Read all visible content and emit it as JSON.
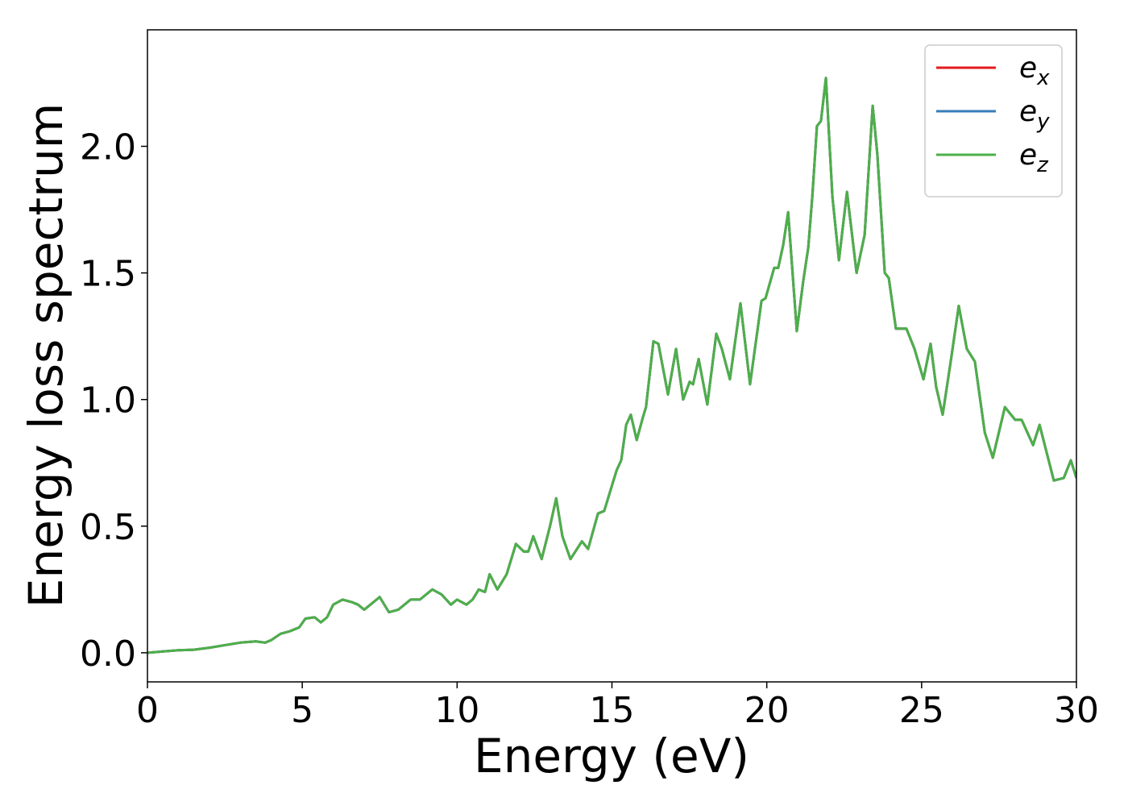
{
  "chart_data": {
    "type": "line",
    "xlabel": "Energy (eV)",
    "ylabel": "Energy loss spectrum",
    "xlim": [
      0,
      30
    ],
    "ylim": [
      -0.115,
      2.46
    ],
    "xticks": [
      0,
      5,
      10,
      15,
      20,
      25,
      30
    ],
    "yticks": [
      {
        "value": 0,
        "label": "0.0"
      },
      0.5,
      {
        "value": 1,
        "label": "1.0"
      },
      1.5,
      {
        "value": 2,
        "label": "2.0"
      }
    ],
    "legend": "upper right",
    "x": [
      0,
      0.5,
      1,
      1.5,
      2,
      2.5,
      3,
      3.5,
      3.8,
      4,
      4.3,
      4.6,
      4.9,
      5.1,
      5.4,
      5.6,
      5.8,
      6,
      6.3,
      6.6,
      6.8,
      7,
      7.2,
      7.5,
      7.8,
      8.1,
      8.5,
      8.8,
      9.2,
      9.5,
      9.8,
      10,
      10.3,
      10.5,
      10.7,
      10.9,
      11.05,
      11.3,
      11.6,
      11.9,
      12.15,
      12.3,
      12.46,
      12.73,
      13.0,
      13.2,
      13.4,
      13.66,
      14.03,
      14.23,
      14.55,
      14.75,
      15.15,
      15.3,
      15.46,
      15.61,
      15.8,
      16.0,
      16.1,
      16.34,
      16.5,
      16.81,
      17.07,
      17.3,
      17.51,
      17.62,
      17.8,
      18.08,
      18.37,
      18.55,
      18.81,
      19.15,
      19.46,
      19.83,
      19.96,
      20.24,
      20.37,
      20.53,
      20.69,
      20.97,
      21.18,
      21.34,
      21.47,
      21.62,
      21.75,
      21.91,
      22.12,
      22.33,
      22.59,
      22.9,
      23.16,
      23.42,
      23.57,
      23.81,
      23.94,
      24.17,
      24.51,
      24.77,
      25.06,
      25.29,
      25.47,
      25.68,
      25.94,
      26.2,
      26.46,
      26.72,
      27.04,
      27.3,
      27.69,
      28.02,
      28.23,
      28.6,
      28.81,
      29.27,
      29.59,
      29.82,
      30
    ],
    "series": [
      {
        "name": "e_x",
        "color": "#e41a1c",
        "values": [
          0,
          0.005,
          0.01,
          0.012,
          0.02,
          0.03,
          0.04,
          0.045,
          0.04,
          0.05,
          0.075,
          0.085,
          0.1,
          0.135,
          0.14,
          0.12,
          0.14,
          0.19,
          0.21,
          0.2,
          0.19,
          0.17,
          0.19,
          0.22,
          0.16,
          0.17,
          0.21,
          0.21,
          0.25,
          0.23,
          0.19,
          0.21,
          0.19,
          0.21,
          0.25,
          0.24,
          0.31,
          0.25,
          0.31,
          0.43,
          0.4,
          0.4,
          0.46,
          0.37,
          0.5,
          0.61,
          0.46,
          0.37,
          0.44,
          0.41,
          0.55,
          0.56,
          0.72,
          0.76,
          0.9,
          0.94,
          0.84,
          0.93,
          0.97,
          1.23,
          1.22,
          1.02,
          1.2,
          1.0,
          1.07,
          1.06,
          1.16,
          0.98,
          1.26,
          1.2,
          1.08,
          1.38,
          1.06,
          1.39,
          1.4,
          1.52,
          1.52,
          1.61,
          1.74,
          1.27,
          1.47,
          1.6,
          1.8,
          2.08,
          2.1,
          2.27,
          1.8,
          1.55,
          1.82,
          1.5,
          1.65,
          2.16,
          1.97,
          1.5,
          1.48,
          1.28,
          1.28,
          1.2,
          1.08,
          1.22,
          1.05,
          0.94,
          1.15,
          1.37,
          1.2,
          1.15,
          0.87,
          0.77,
          0.97,
          0.92,
          0.92,
          0.82,
          0.9,
          0.68,
          0.69,
          0.76,
          0.69
        ]
      },
      {
        "name": "e_y",
        "color": "#377eb8",
        "values": [
          0,
          0.005,
          0.01,
          0.012,
          0.02,
          0.03,
          0.04,
          0.045,
          0.04,
          0.05,
          0.075,
          0.085,
          0.1,
          0.135,
          0.14,
          0.12,
          0.14,
          0.19,
          0.21,
          0.2,
          0.19,
          0.17,
          0.19,
          0.22,
          0.16,
          0.17,
          0.21,
          0.21,
          0.25,
          0.23,
          0.19,
          0.21,
          0.19,
          0.21,
          0.25,
          0.24,
          0.31,
          0.25,
          0.31,
          0.43,
          0.4,
          0.4,
          0.46,
          0.37,
          0.5,
          0.61,
          0.46,
          0.37,
          0.44,
          0.41,
          0.55,
          0.56,
          0.72,
          0.76,
          0.9,
          0.94,
          0.84,
          0.93,
          0.97,
          1.23,
          1.22,
          1.02,
          1.2,
          1.0,
          1.07,
          1.06,
          1.16,
          0.98,
          1.26,
          1.2,
          1.08,
          1.38,
          1.06,
          1.39,
          1.4,
          1.52,
          1.52,
          1.61,
          1.74,
          1.27,
          1.47,
          1.6,
          1.8,
          2.08,
          2.1,
          2.27,
          1.8,
          1.55,
          1.82,
          1.5,
          1.65,
          2.16,
          1.97,
          1.5,
          1.48,
          1.28,
          1.28,
          1.2,
          1.08,
          1.22,
          1.05,
          0.94,
          1.15,
          1.37,
          1.2,
          1.15,
          0.87,
          0.77,
          0.97,
          0.92,
          0.92,
          0.82,
          0.9,
          0.68,
          0.69,
          0.76,
          0.69
        ]
      },
      {
        "name": "e_z",
        "color": "#4daf4a",
        "values": [
          0,
          0.005,
          0.01,
          0.012,
          0.02,
          0.03,
          0.04,
          0.045,
          0.04,
          0.05,
          0.075,
          0.085,
          0.1,
          0.135,
          0.14,
          0.12,
          0.14,
          0.19,
          0.21,
          0.2,
          0.19,
          0.17,
          0.19,
          0.22,
          0.16,
          0.17,
          0.21,
          0.21,
          0.25,
          0.23,
          0.19,
          0.21,
          0.19,
          0.21,
          0.25,
          0.24,
          0.31,
          0.25,
          0.31,
          0.43,
          0.4,
          0.4,
          0.46,
          0.37,
          0.5,
          0.61,
          0.46,
          0.37,
          0.44,
          0.41,
          0.55,
          0.56,
          0.72,
          0.76,
          0.9,
          0.94,
          0.84,
          0.93,
          0.97,
          1.23,
          1.22,
          1.02,
          1.2,
          1.0,
          1.07,
          1.06,
          1.16,
          0.98,
          1.26,
          1.2,
          1.08,
          1.38,
          1.06,
          1.39,
          1.4,
          1.52,
          1.52,
          1.61,
          1.74,
          1.27,
          1.47,
          1.6,
          1.8,
          2.08,
          2.1,
          2.27,
          1.8,
          1.55,
          1.82,
          1.5,
          1.65,
          2.16,
          1.97,
          1.5,
          1.48,
          1.28,
          1.28,
          1.2,
          1.08,
          1.22,
          1.05,
          0.94,
          1.15,
          1.37,
          1.2,
          1.15,
          0.87,
          0.77,
          0.97,
          0.92,
          0.92,
          0.82,
          0.9,
          0.68,
          0.69,
          0.76,
          0.69
        ]
      }
    ]
  }
}
